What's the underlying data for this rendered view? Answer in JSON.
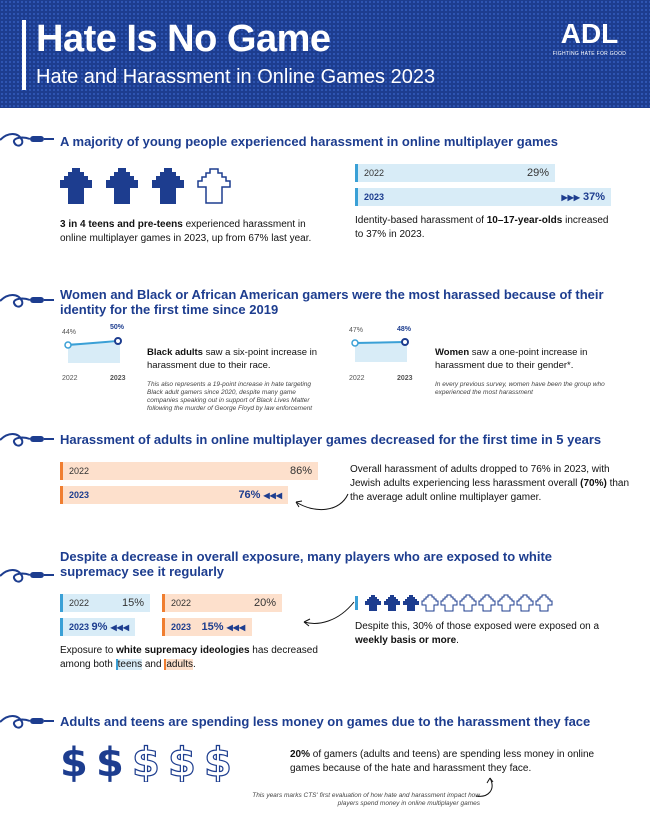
{
  "header": {
    "title": "Hate Is No Game",
    "subtitle": "Hate and Harassment in Online Games 2023",
    "logo": "ADL",
    "logo_tag": "FIGHTING HATE FOR GOOD"
  },
  "section1": {
    "title": "A majority of young people experienced harassment in online multiplayer games",
    "left_bold": "3 in 4 teens and pre-teens",
    "left_text": " experienced harassment in online multiplayer games in 2023, up from 67% last year.",
    "bar_2022_label": "2022",
    "bar_2022_value": "29%",
    "bar_2023_label": "2023",
    "bar_2023_value": "37%",
    "arrows": "▶▶▶",
    "right_text_a": "Identity-based harassment of ",
    "right_bold": "10–17-year-olds",
    "right_text_b": " increased to 37% in 2023."
  },
  "section2": {
    "title": "Women and Black or African American gamers were the most harassed because of their identity for the first time since 2019",
    "black": {
      "v2022": "44%",
      "v2023": "50%",
      "y1": "2022",
      "y2": "2023",
      "bold": "Black adults",
      "text": " saw a six-point increase in harassment due to their race.",
      "note": "This also represents a 19-point increase in hate targeting Black adult gamers since 2020, despite many game companies speaking out in support of Black Lives Matter following the murder of George Floyd by law enforcement"
    },
    "women": {
      "v2022": "47%",
      "v2023": "48%",
      "y1": "2022",
      "y2": "2023",
      "bold": "Women",
      "text": " saw a one-point increase in harassment due to their gender*.",
      "note": "In every previous survey, women have been the group who experienced the most harassment"
    }
  },
  "section3": {
    "title": "Harassment of adults in online multiplayer games decreased for the first time in 5 years",
    "bar_2022_label": "2022",
    "bar_2022_value": "86%",
    "bar_2023_label": "2023",
    "bar_2023_value": "76%",
    "arrows": "◀◀◀",
    "text_a": "Overall harassment of adults dropped to 76% in 2023, with Jewish adults experiencing less harassment overall ",
    "text_bold": "(70%)",
    "text_b": " than the average adult online multiplayer gamer."
  },
  "section4": {
    "title": "Despite a decrease in overall exposure, many players who are exposed to white supremacy see it regularly",
    "teens_2022_label": "2022",
    "teens_2022_value": "15%",
    "teens_2023_label": "2023",
    "teens_2023_value": "9%",
    "adults_2022_label": "2022",
    "adults_2022_value": "20%",
    "adults_2023_label": "2023",
    "adults_2023_value": "15%",
    "arrows": "◀◀◀",
    "left_a": "Exposure to ",
    "left_bold": "white supremacy ideologies",
    "left_b": " has decreased among both ",
    "teens": "teens",
    "and": " and ",
    "adults": "adults",
    "period": ".",
    "right_a": "Despite this, 30% of those exposed were exposed on a ",
    "right_bold": "weekly basis or more",
    "right_b": "."
  },
  "section5": {
    "title": "Adults and teens are spending less money on games due to the harassment they face",
    "bold": "20%",
    "text": " of gamers (adults and teens) are spending less money in online games because of the hate and harassment they face.",
    "note": "This years marks CTS' first evaluation of how hate and harassment impact how players spend money in online multiplayer games"
  },
  "colors": {
    "navy": "#1d3d8f",
    "light_blue": "#3aa0d6",
    "orange": "#f07e30"
  }
}
